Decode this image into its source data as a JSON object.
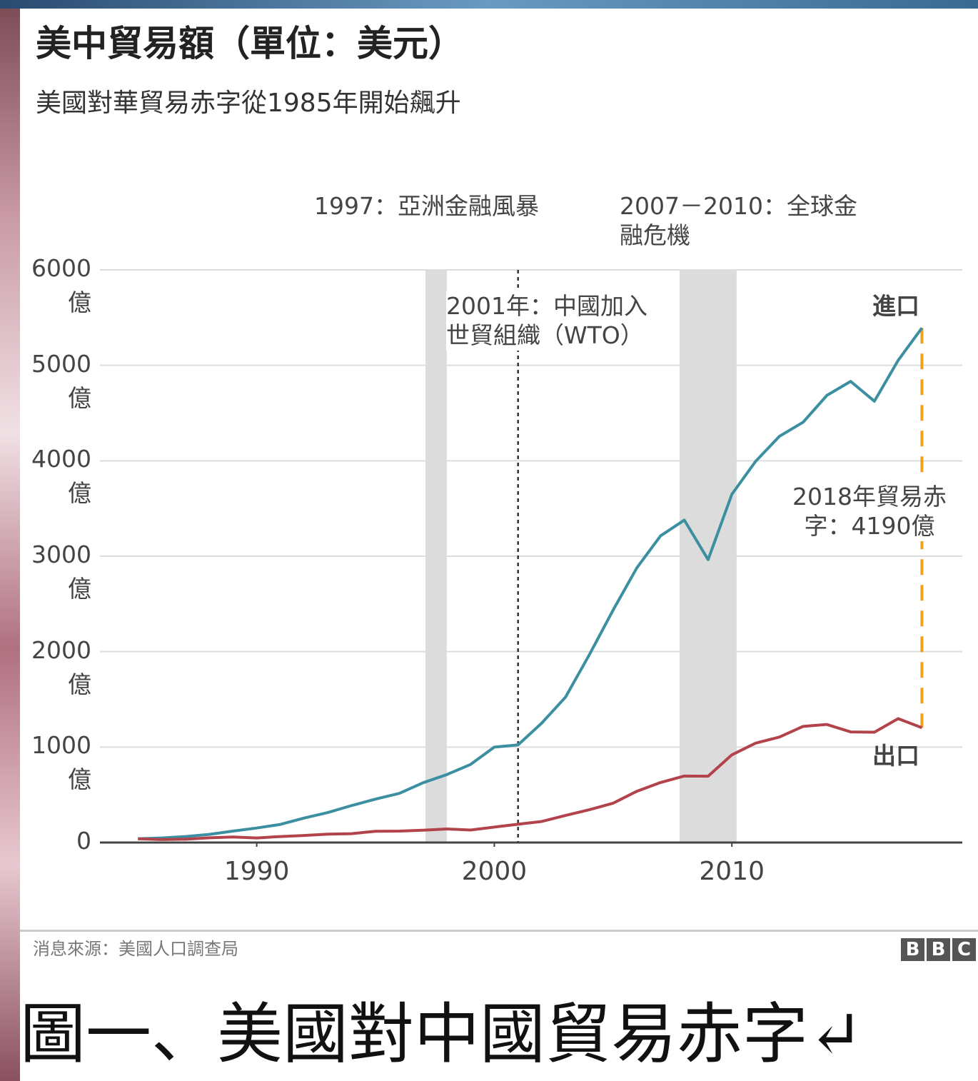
{
  "chart_data": {
    "type": "line",
    "title": "美中貿易額（單位：美元）",
    "subtitle": "美國對華貿易赤字從1985年開始飆升",
    "x": [
      1985,
      1986,
      1987,
      1988,
      1989,
      1990,
      1991,
      1992,
      1993,
      1994,
      1995,
      1996,
      1997,
      1998,
      1999,
      2000,
      2001,
      2002,
      2003,
      2004,
      2005,
      2006,
      2007,
      2008,
      2009,
      2010,
      2011,
      2012,
      2013,
      2014,
      2015,
      2016,
      2017,
      2018
    ],
    "series": [
      {
        "name": "進口",
        "color": "#3b8fa0",
        "values": [
          39,
          48,
          63,
          85,
          120,
          152,
          190,
          257,
          315,
          388,
          455,
          515,
          626,
          712,
          818,
          1000,
          1023,
          1252,
          1524,
          1967,
          2435,
          2878,
          3214,
          3378,
          2964,
          3649,
          3994,
          4256,
          4404,
          4685,
          4832,
          4624,
          5052,
          5392
        ]
      },
      {
        "name": "出口",
        "color": "#b3434b",
        "values": [
          39,
          31,
          35,
          50,
          58,
          48,
          63,
          74,
          88,
          93,
          118,
          120,
          129,
          142,
          131,
          162,
          192,
          221,
          284,
          344,
          412,
          537,
          629,
          697,
          695,
          919,
          1041,
          1105,
          1217,
          1237,
          1159,
          1156,
          1298,
          1203
        ]
      }
    ],
    "xlim": [
      1983.4,
      2019.7
    ],
    "ylim": [
      0,
      6000
    ],
    "xticks": [
      1990,
      2000,
      2010
    ],
    "yticks": [
      0,
      {
        "value": 1000,
        "label": "1000\n億"
      },
      {
        "value": 2000,
        "label": "2000\n億"
      },
      {
        "value": 3000,
        "label": "3000\n億"
      },
      {
        "value": 4000,
        "label": "4000\n億"
      },
      {
        "value": 5000,
        "label": "5000\n億"
      },
      {
        "value": 6000,
        "label": "6000\n億"
      }
    ],
    "grid": true,
    "shaded_periods": [
      [
        1997.1,
        1998
      ],
      [
        2007.8,
        2010.2
      ]
    ],
    "event_line": 2001,
    "annotations": [
      "1997：亞洲金融風暴",
      "2007－2010：全球金\n融危機",
      "2001年：中國加入\n世貿組織（WTO）",
      "2018年貿易赤\n字：4190億"
    ],
    "deficit_color": "#f0a020",
    "source": "消息來源：美國人口調查局",
    "logo": [
      "B",
      "B",
      "C"
    ]
  },
  "caption": "圖一、美國對中國貿易赤字↵"
}
